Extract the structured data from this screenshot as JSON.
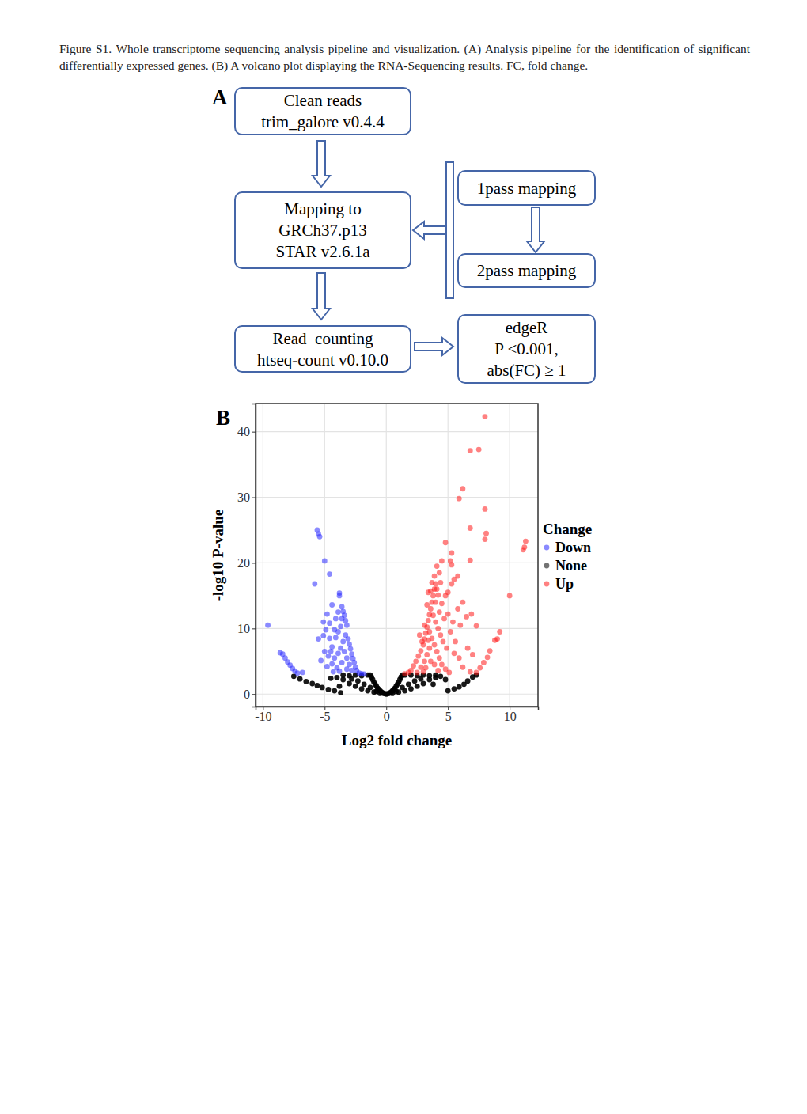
{
  "caption": "Figure S1. Whole transcriptome sequencing analysis pipeline and visualization. (A) Analysis pipeline for the identification of significant differentially expressed genes. (B) A volcano plot displaying the RNA-Sequencing results. FC, fold change.",
  "panel_labels": [
    "A",
    "B"
  ],
  "pipeline": {
    "nodes": [
      {
        "lines": [
          "Clean reads",
          "trim_galore v0.4.4"
        ]
      },
      {
        "lines": [
          "Mapping to",
          "GRCh37.p13",
          "STAR v2.6.1a"
        ]
      },
      {
        "lines": [
          "1pass mapping"
        ]
      },
      {
        "lines": [
          "2pass mapping"
        ]
      },
      {
        "lines": [
          "Read  counting",
          "htseq-count v0.10.0"
        ]
      },
      {
        "lines": [
          "edgeR",
          "P <0.001,",
          "abs(FC) ≥ 1"
        ]
      }
    ]
  },
  "chart_data": {
    "type": "scatter",
    "x_label": "Log2 fold change",
    "y_label": "-log10 P-value",
    "legend_title": "Change",
    "legend": "right",
    "grid": true,
    "xlim": [
      -10.6,
      12.3
    ],
    "ylim": [
      -1.9,
      44.3
    ],
    "xticks": [
      -10,
      -5,
      0,
      5,
      10
    ],
    "yticks": [
      0,
      10,
      20,
      30,
      40
    ],
    "series": [
      {
        "name": "Down",
        "color": "#2a2aff",
        "marker": "circle",
        "x": [
          -9.6,
          -8.6,
          -8.4,
          -8.2,
          -8,
          -7.8,
          -7.6,
          -7.4,
          -7.2,
          -5.6,
          -5.5,
          -5.4,
          -5,
          -4.6,
          -5.8,
          -3.8,
          -3.8,
          -4.4,
          -3.6,
          -3.9,
          -4.8,
          -5.1,
          -4.6,
          -5.5,
          -4.9,
          -5.1,
          -4.6,
          -4.4,
          -5,
          -4.7,
          -3.5,
          -3.4,
          -3.3,
          -3.2,
          -3.6,
          -3.7,
          -3.9,
          -4.1,
          -3.3,
          -3.1,
          -3,
          -2.9,
          -2.8,
          -2.7,
          -2.6,
          -2.5,
          -2.4,
          -2.2,
          -2,
          -1.8,
          -3.5,
          -3.7,
          -3.9,
          -4.2,
          -4.4,
          -3.2,
          -3.4,
          -3,
          -3.6,
          -4,
          -3.8,
          -4.3,
          -2.8,
          -3.2,
          -4.1,
          -4.2,
          -4.5,
          -4.8,
          -5.3,
          -6.8
        ],
        "values": [
          10.5,
          6.3,
          6.1,
          5.5,
          4.9,
          4.4,
          3.9,
          3.5,
          3.2,
          25,
          24.4,
          24,
          20.3,
          18.3,
          16.8,
          15.4,
          15,
          13.6,
          13.3,
          12.5,
          12.2,
          11,
          10.8,
          8.4,
          9.8,
          8.9,
          8.5,
          7.2,
          6.5,
          5.8,
          12.6,
          12,
          11.2,
          10.5,
          11.5,
          10.3,
          9.5,
          8.6,
          9,
          8.4,
          7.6,
          6.9,
          6.1,
          5.4,
          4.8,
          4.1,
          3.6,
          3.2,
          3.1,
          3.05,
          8,
          7,
          6.2,
          5.5,
          4.6,
          5.5,
          6.5,
          4.5,
          4.8,
          4,
          3.5,
          3.4,
          3.6,
          3.8,
          11.5,
          9.8,
          6.5,
          4.2,
          5.1,
          3.3
        ]
      },
      {
        "name": "None",
        "color": "#000000",
        "marker": "circle",
        "x": [
          0,
          0.1,
          -0.1,
          0.2,
          -0.2,
          0.3,
          -0.3,
          0.4,
          -0.4,
          0.5,
          -0.5,
          0.6,
          -0.6,
          0.7,
          -0.7,
          0.8,
          -0.8,
          0.9,
          -0.9,
          1,
          -1,
          1.1,
          -1.1,
          1.2,
          -1.2,
          1.3,
          -1.3,
          0.5,
          -0.5,
          1,
          -1,
          1.5,
          -1.5,
          2,
          -2,
          2.5,
          -2.5,
          3,
          -3,
          3.5,
          -3.5,
          1.5,
          2,
          2.5,
          3,
          3.5,
          4,
          -1.5,
          -2,
          -2.5,
          -3,
          -3.5,
          1.8,
          -1.8,
          2.3,
          -2.3,
          0.8,
          -0.8,
          1.3,
          -1.3,
          2.8,
          -2.8,
          4,
          4.4,
          3.8,
          -4,
          -3.8,
          -3.7,
          -4.2,
          -4.7,
          -5.2,
          -5.6,
          -6,
          -6.5,
          -7,
          -7.5,
          5,
          5.5,
          5.9,
          6.3,
          6.6,
          7,
          7.3,
          4.8,
          -4.5
        ],
        "values": [
          0,
          0.05,
          0.05,
          0.1,
          0.1,
          0.2,
          0.2,
          0.3,
          0.3,
          0.5,
          0.5,
          0.7,
          0.7,
          0.9,
          0.9,
          1.2,
          1.2,
          1.5,
          1.5,
          1.8,
          1.8,
          2.2,
          2.2,
          2.6,
          2.6,
          2.9,
          2.9,
          0.1,
          0.1,
          0.3,
          0.3,
          0.5,
          0.5,
          0.8,
          0.8,
          1.2,
          1.2,
          1.6,
          1.6,
          2.2,
          2.2,
          2.9,
          2.9,
          2.8,
          2.9,
          2.8,
          2.9,
          2.9,
          2.8,
          2.9,
          2.8,
          2.9,
          1.5,
          1.5,
          2,
          2,
          0.4,
          0.4,
          1,
          1,
          2.3,
          2.3,
          2.5,
          2.7,
          1.5,
          2.5,
          1.2,
          0.2,
          0.5,
          0.7,
          1,
          1.3,
          1.6,
          1.9,
          2.3,
          2.7,
          0.5,
          0.8,
          1.1,
          1.5,
          2,
          2.6,
          2.9,
          2.2,
          2.4
        ]
      },
      {
        "name": "Up",
        "color": "#ff1a1a",
        "marker": "circle",
        "x": [
          1.5,
          1.8,
          2,
          2.2,
          2.4,
          2.6,
          2.8,
          3,
          3.1,
          3.2,
          3.3,
          3.4,
          3.5,
          3.6,
          3.7,
          3.8,
          3.9,
          4,
          4.1,
          4.2,
          3.3,
          3.6,
          3.8,
          4,
          4.2,
          4.4,
          4.6,
          3.5,
          3.7,
          3.9,
          4.1,
          4.3,
          4.5,
          4.8,
          5.1,
          2.8,
          3.1,
          3.3,
          3.5,
          3.2,
          3.6,
          3.9,
          4.2,
          2.5,
          3,
          4.3,
          4.5,
          4.8,
          5,
          5.3,
          5.5,
          5.8,
          4.7,
          5,
          5.4,
          5.8,
          6.2,
          5.2,
          5.6,
          6,
          6.5,
          6.9,
          7.3,
          6.6,
          7,
          5.9,
          5.5,
          4.9,
          6.2,
          6.8,
          4,
          4.4,
          4.3,
          3.9,
          4.1,
          4.5,
          3.4,
          3.7,
          2.7,
          2.9,
          3.1,
          3.4,
          8,
          7.5,
          6.8,
          6.2,
          5.9,
          8,
          6.8,
          8.1,
          8,
          4.8,
          11.3,
          11.2,
          11.1,
          5.3,
          5.2,
          5.3,
          6.8,
          10,
          9.2,
          9,
          8.8,
          8.4,
          8.2,
          7.9,
          7.6,
          7.3
        ],
        "values": [
          3.1,
          3.3,
          3.6,
          4.3,
          5,
          5.8,
          6.6,
          7.5,
          8.4,
          9.3,
          10.2,
          11.2,
          12.1,
          13,
          14,
          15,
          16,
          16.8,
          16,
          15.1,
          13.6,
          15.7,
          12,
          11,
          10,
          9,
          8,
          9.5,
          8.5,
          7.5,
          6.5,
          5.5,
          4.5,
          3.8,
          3.3,
          4.1,
          5,
          6,
          7,
          4,
          5,
          4.5,
          3.6,
          3.3,
          3.4,
          12.5,
          13.8,
          15,
          15.5,
          16.8,
          17.5,
          18,
          11.5,
          12.2,
          11,
          13,
          14,
          9.5,
          8,
          10.5,
          11.8,
          12.2,
          10.4,
          7,
          6,
          5.5,
          6.2,
          7,
          4.1,
          3.4,
          14,
          17,
          18.5,
          18,
          19.5,
          20.3,
          15.5,
          17,
          9,
          8,
          10.5,
          8.2,
          42.3,
          37.3,
          37.1,
          31.3,
          29.8,
          28.2,
          25.3,
          24.5,
          23.6,
          23.1,
          23.3,
          22.4,
          22,
          21.5,
          20.3,
          19.7,
          20.4,
          15,
          9.5,
          8.4,
          8.2,
          6.6,
          5.6,
          4.8,
          4,
          3.3
        ]
      }
    ]
  }
}
